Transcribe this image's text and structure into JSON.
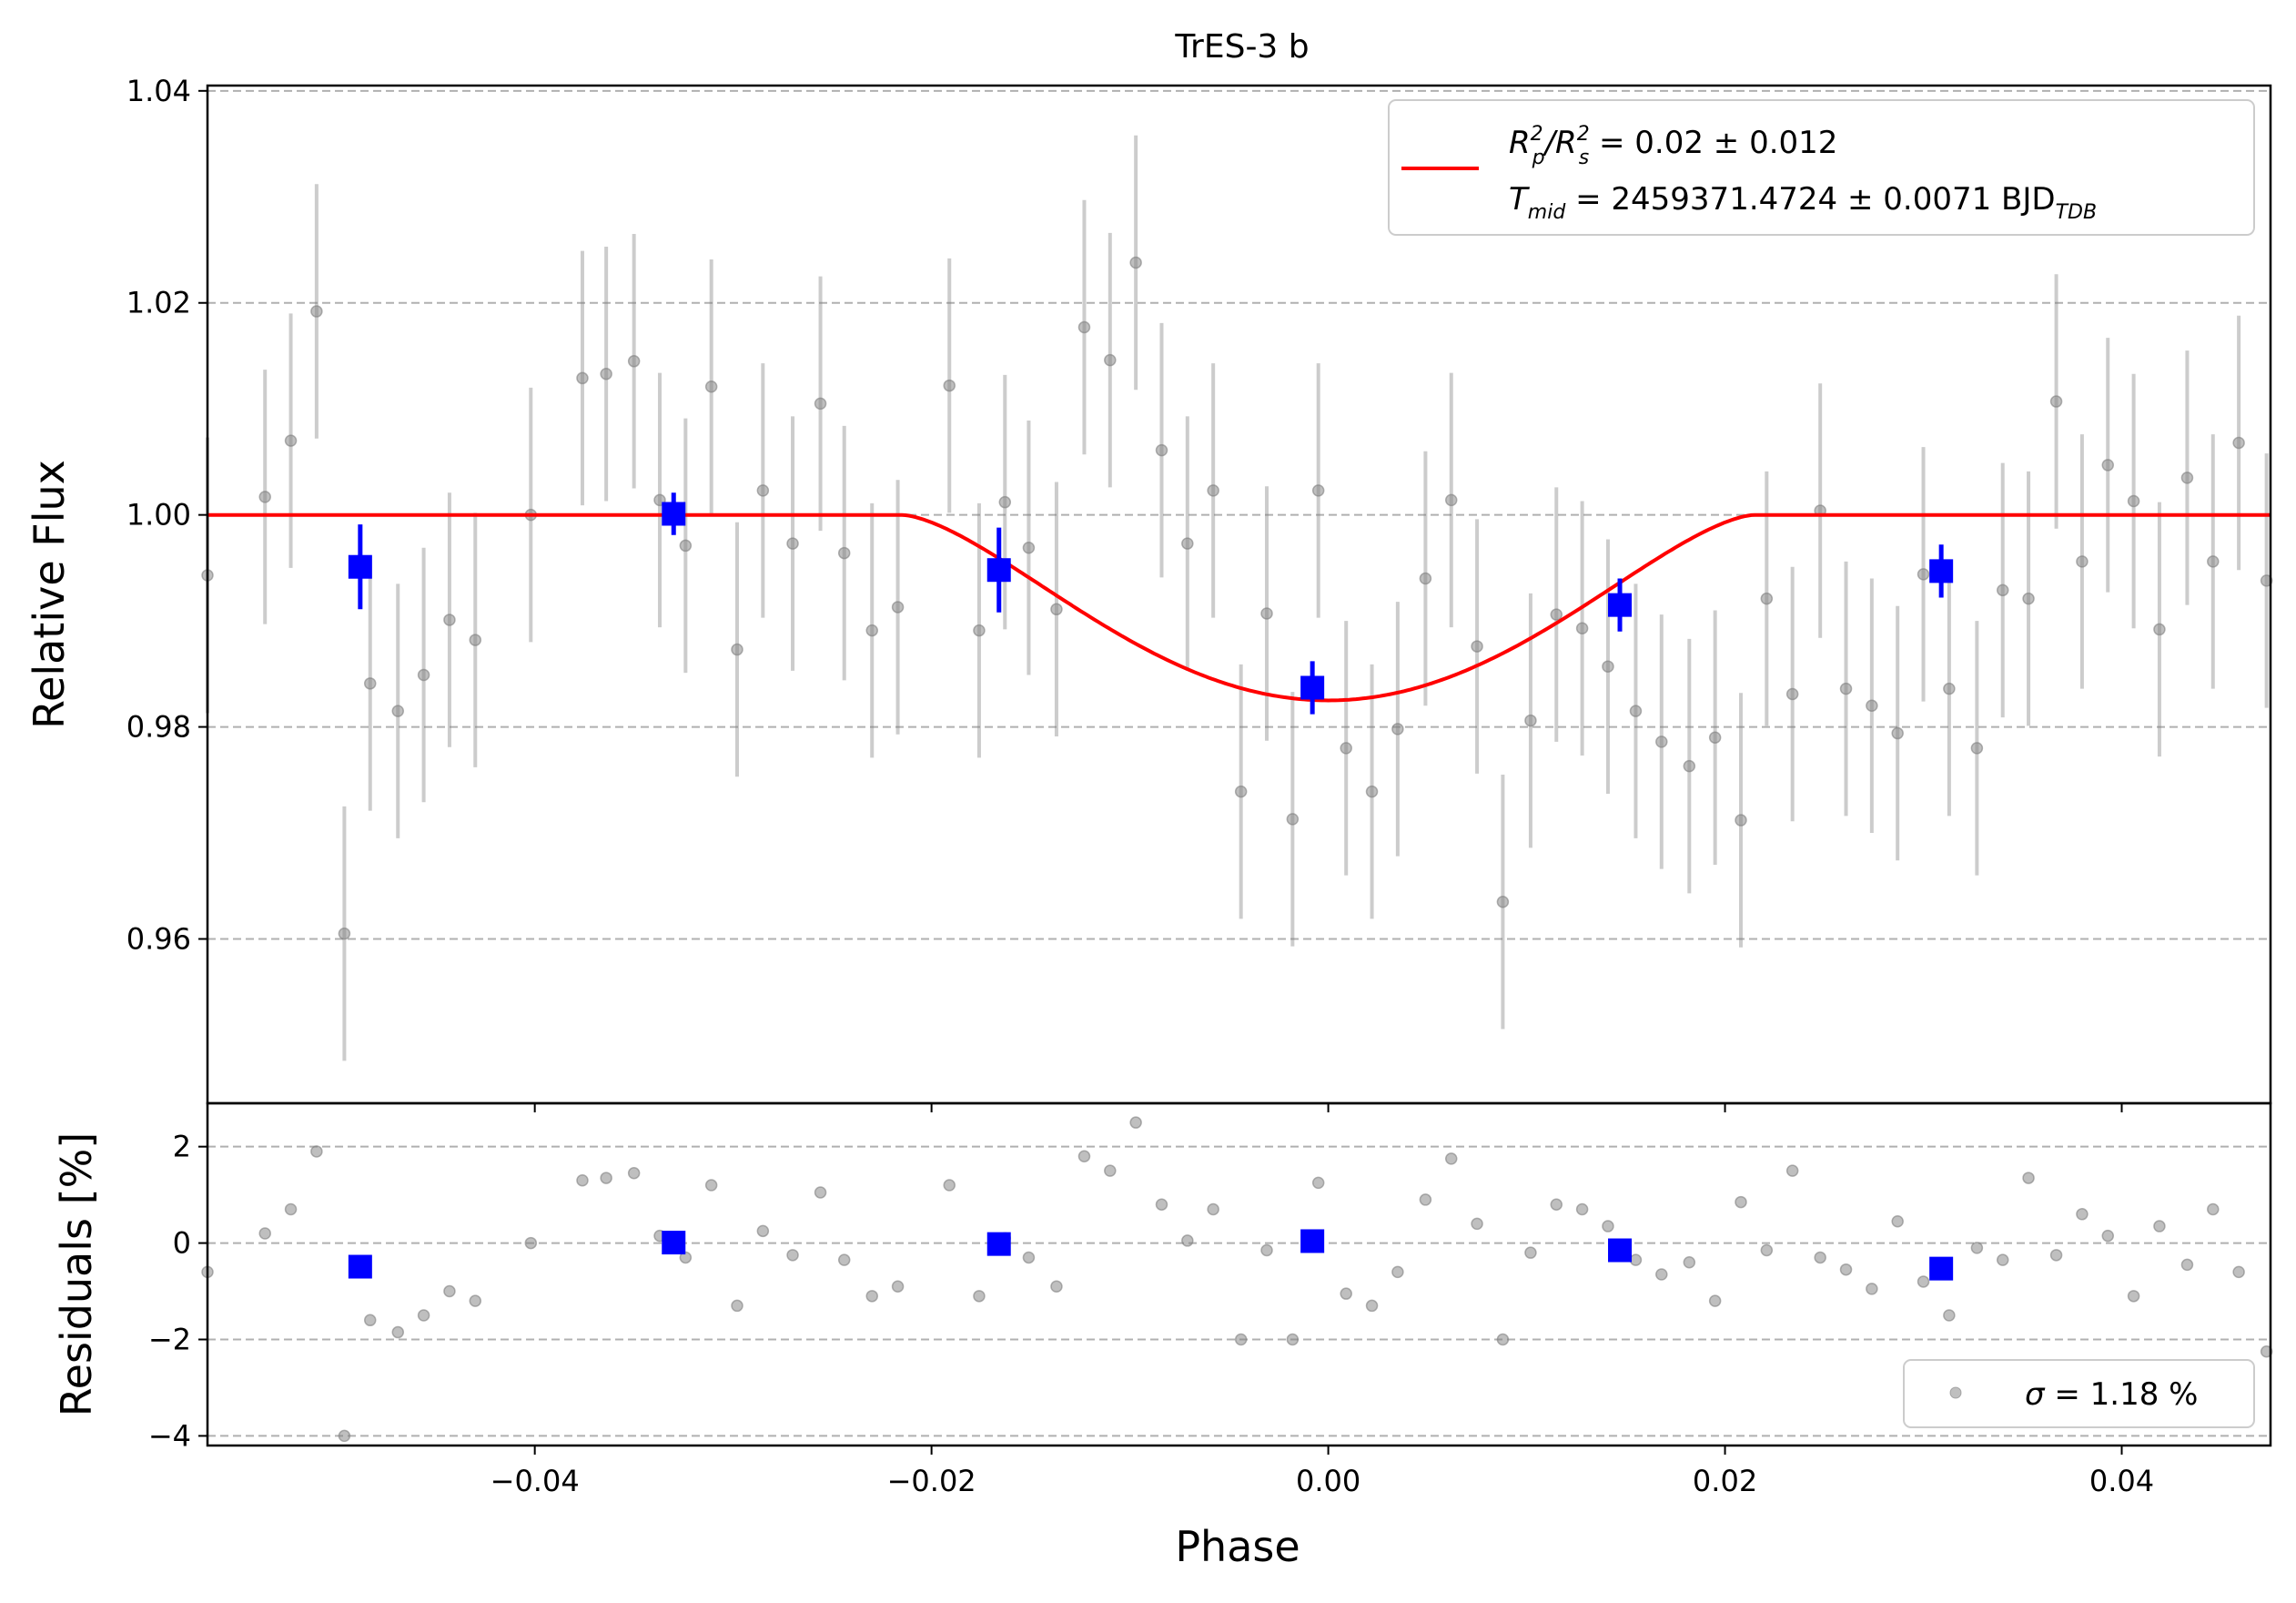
{
  "chart_data": [
    {
      "panel": "main",
      "type": "scatter",
      "title": "TrES-3 b",
      "xlabel": "Phase",
      "ylabel": "Relative Flux",
      "xlim": [
        -0.0565,
        0.0475
      ],
      "ylim": [
        0.9445,
        1.0405
      ],
      "xticks": [
        -0.04,
        -0.02,
        0.0,
        0.02,
        0.04
      ],
      "xtick_labels": [
        "−0.04",
        "−0.02",
        "0.00",
        "0.02",
        "0.04"
      ],
      "yticks": [
        0.96,
        0.98,
        1.0,
        1.02,
        1.04
      ],
      "ytick_labels": [
        "0.96",
        "0.98",
        "1.00",
        "1.02",
        "1.04"
      ],
      "grid": "horizontal dashed",
      "legend_position": "top-right",
      "legend": {
        "model_line_1": {
          "prefix": "R",
          "sub1": "p",
          "sup1": "2",
          "slash": "/R",
          "sub2": "s",
          "sup2": "2",
          "value": " = 0.02 ± 0.012"
        },
        "model_line_2": {
          "prefix": "T",
          "sub": "mid",
          "value": " = 2459371.4724 ± 0.0071 BJD",
          "unit_sub": "TDB"
        }
      },
      "model": {
        "name": "transit model",
        "baseline": 1.0,
        "depth_min": 0.9825,
        "t14_half": 0.0215,
        "flat_bottom_half": 0.0,
        "color": "#ff0000"
      },
      "raw_points": {
        "color": "#808080",
        "points": [
          [
            -0.0565,
            0.9943,
            0.013
          ],
          [
            -0.0536,
            1.0017,
            0.012
          ],
          [
            -0.0523,
            1.007,
            0.012
          ],
          [
            -0.051,
            1.0192,
            0.012
          ],
          [
            -0.0496,
            0.9605,
            0.012
          ],
          [
            -0.0483,
            0.9841,
            0.012
          ],
          [
            -0.0469,
            0.9815,
            0.012
          ],
          [
            -0.0456,
            0.9849,
            0.012
          ],
          [
            -0.0443,
            0.9901,
            0.012
          ],
          [
            -0.043,
            0.9882,
            0.012
          ],
          [
            -0.0402,
            1.0,
            0.012
          ],
          [
            -0.0376,
            1.0129,
            0.012
          ],
          [
            -0.0364,
            1.0133,
            0.012
          ],
          [
            -0.035,
            1.0145,
            0.012
          ],
          [
            -0.0337,
            1.0014,
            0.012
          ],
          [
            -0.0324,
            0.9971,
            0.012
          ],
          [
            -0.0311,
            1.0121,
            0.012
          ],
          [
            -0.0298,
            0.9873,
            0.012
          ],
          [
            -0.0285,
            1.0023,
            0.012
          ],
          [
            -0.027,
            0.9973,
            0.012
          ],
          [
            -0.0256,
            1.0105,
            0.012
          ],
          [
            -0.0244,
            0.9964,
            0.012
          ],
          [
            -0.023,
            0.9891,
            0.012
          ],
          [
            -0.0217,
            0.9913,
            0.012
          ],
          [
            -0.0191,
            1.0122,
            0.012
          ],
          [
            -0.0176,
            0.9891,
            0.012
          ],
          [
            -0.0163,
            1.0012,
            0.012
          ],
          [
            -0.0151,
            0.9969,
            0.012
          ],
          [
            -0.0137,
            0.9911,
            0.012
          ],
          [
            -0.0123,
            1.0177,
            0.012
          ],
          [
            -0.011,
            1.0146,
            0.012
          ],
          [
            -0.0097,
            1.0238,
            0.012
          ],
          [
            -0.0084,
            1.0061,
            0.012
          ],
          [
            -0.0071,
            0.9973,
            0.012
          ],
          [
            -0.0058,
            1.0023,
            0.012
          ],
          [
            -0.0044,
            0.9739,
            0.012
          ],
          [
            -0.0031,
            0.9907,
            0.012
          ],
          [
            -0.0018,
            0.9713,
            0.012
          ],
          [
            -0.0005,
            1.0023,
            0.012
          ],
          [
            0.0009,
            0.978,
            0.012
          ],
          [
            0.0022,
            0.9739,
            0.012
          ],
          [
            0.0035,
            0.9798,
            0.012
          ],
          [
            0.0049,
            0.994,
            0.012
          ],
          [
            0.0062,
            1.0014,
            0.012
          ],
          [
            0.0075,
            0.9876,
            0.012
          ],
          [
            0.0088,
            0.9635,
            0.012
          ],
          [
            0.0102,
            0.9806,
            0.012
          ],
          [
            0.0115,
            0.9906,
            0.012
          ],
          [
            0.0128,
            0.9893,
            0.012
          ],
          [
            0.0141,
            0.9857,
            0.012
          ],
          [
            0.0155,
            0.9815,
            0.012
          ],
          [
            0.0168,
            0.9786,
            0.012
          ],
          [
            0.0182,
            0.9763,
            0.012
          ],
          [
            0.0195,
            0.979,
            0.012
          ],
          [
            0.0208,
            0.9712,
            0.012
          ],
          [
            0.0221,
            0.9921,
            0.012
          ],
          [
            0.0234,
            0.9831,
            0.012
          ],
          [
            0.0248,
            1.0004,
            0.012
          ],
          [
            0.0261,
            0.9836,
            0.012
          ],
          [
            0.0274,
            0.982,
            0.012
          ],
          [
            0.0287,
            0.9794,
            0.012
          ],
          [
            0.03,
            0.9944,
            0.012
          ],
          [
            0.0313,
            0.9836,
            0.012
          ],
          [
            0.0327,
            0.978,
            0.012
          ],
          [
            0.034,
            0.9929,
            0.012
          ],
          [
            0.0353,
            0.9921,
            0.012
          ],
          [
            0.0367,
            1.0107,
            0.012
          ],
          [
            0.038,
            0.9956,
            0.012
          ],
          [
            0.0393,
            1.0047,
            0.012
          ],
          [
            0.0406,
            1.0013,
            0.012
          ],
          [
            0.0419,
            0.9892,
            0.012
          ],
          [
            0.0433,
            1.0035,
            0.012
          ],
          [
            0.0446,
            0.9956,
            0.012
          ],
          [
            0.0459,
            1.0068,
            0.012
          ],
          [
            0.0473,
            0.9938,
            0.012
          ]
        ]
      },
      "binned_points": {
        "color": "#0000ff",
        "points": [
          [
            -0.0488,
            0.9951,
            0.004
          ],
          [
            -0.033,
            1.0001,
            0.002
          ],
          [
            -0.0166,
            0.9948,
            0.004
          ],
          [
            -0.0008,
            0.9837,
            0.0025
          ],
          [
            0.0147,
            0.9915,
            0.0025
          ],
          [
            0.0309,
            0.9947,
            0.0025
          ]
        ]
      }
    },
    {
      "panel": "residuals",
      "type": "scatter",
      "xlabel": "Phase",
      "ylabel": "Residuals [%]",
      "xlim": [
        -0.0565,
        0.0475
      ],
      "ylim": [
        -4.2,
        2.9
      ],
      "yticks": [
        2,
        0,
        -2,
        -4
      ],
      "ytick_labels": [
        "2",
        "0",
        "−2",
        "−4"
      ],
      "grid": "horizontal dashed",
      "legend_position": "bottom-right",
      "legend": {
        "sigma_symbol": "σ",
        "value": " = 1.18 %"
      },
      "raw_points": {
        "color": "#808080",
        "points": [
          [
            -0.0565,
            -0.6
          ],
          [
            -0.0536,
            0.2
          ],
          [
            -0.0523,
            0.7
          ],
          [
            -0.051,
            1.9
          ],
          [
            -0.0496,
            -4.0
          ],
          [
            -0.0483,
            -1.6
          ],
          [
            -0.0469,
            -1.85
          ],
          [
            -0.0456,
            -1.5
          ],
          [
            -0.0443,
            -1.0
          ],
          [
            -0.043,
            -1.2
          ],
          [
            -0.0402,
            0.0
          ],
          [
            -0.0376,
            1.3
          ],
          [
            -0.0364,
            1.35
          ],
          [
            -0.035,
            1.45
          ],
          [
            -0.0337,
            0.15
          ],
          [
            -0.0324,
            -0.3
          ],
          [
            -0.0311,
            1.2
          ],
          [
            -0.0298,
            -1.3
          ],
          [
            -0.0285,
            0.25
          ],
          [
            -0.027,
            -0.25
          ],
          [
            -0.0256,
            1.05
          ],
          [
            -0.0244,
            -0.35
          ],
          [
            -0.023,
            -1.1
          ],
          [
            -0.0217,
            -0.9
          ],
          [
            -0.0191,
            1.2
          ],
          [
            -0.0176,
            -1.1
          ],
          [
            -0.0163,
            0.1
          ],
          [
            -0.0151,
            -0.3
          ],
          [
            -0.0137,
            -0.9
          ],
          [
            -0.0123,
            1.8
          ],
          [
            -0.011,
            1.5
          ],
          [
            -0.0097,
            2.5
          ],
          [
            -0.0084,
            0.8
          ],
          [
            -0.0071,
            0.05
          ],
          [
            -0.0058,
            0.7
          ],
          [
            -0.0044,
            -2.0
          ],
          [
            -0.0031,
            -0.15
          ],
          [
            -0.0018,
            -2.0
          ],
          [
            -0.0005,
            1.25
          ],
          [
            0.0009,
            -1.05
          ],
          [
            0.0022,
            -1.3
          ],
          [
            0.0035,
            -0.6
          ],
          [
            0.0049,
            0.9
          ],
          [
            0.0062,
            1.75
          ],
          [
            0.0075,
            0.4
          ],
          [
            0.0088,
            -2.0
          ],
          [
            0.0102,
            -0.2
          ],
          [
            0.0115,
            0.8
          ],
          [
            0.0128,
            0.7
          ],
          [
            0.0141,
            0.35
          ],
          [
            0.0155,
            -0.35
          ],
          [
            0.0168,
            -0.65
          ],
          [
            0.0182,
            -0.4
          ],
          [
            0.0195,
            -1.2
          ],
          [
            0.0208,
            0.85
          ],
          [
            0.0221,
            -0.15
          ],
          [
            0.0234,
            1.5
          ],
          [
            0.0248,
            -0.3
          ],
          [
            0.0261,
            -0.55
          ],
          [
            0.0274,
            -0.95
          ],
          [
            0.0287,
            0.45
          ],
          [
            0.03,
            -0.8
          ],
          [
            0.0313,
            -1.5
          ],
          [
            0.0327,
            -0.1
          ],
          [
            0.034,
            -0.35
          ],
          [
            0.0353,
            1.35
          ],
          [
            0.0367,
            -0.25
          ],
          [
            0.038,
            0.6
          ],
          [
            0.0393,
            0.15
          ],
          [
            0.0406,
            -1.1
          ],
          [
            0.0419,
            0.35
          ],
          [
            0.0433,
            -0.45
          ],
          [
            0.0446,
            0.7
          ],
          [
            0.0459,
            -0.6
          ],
          [
            0.0473,
            -2.25
          ]
        ]
      },
      "binned_points": {
        "color": "#0000ff",
        "points": [
          [
            -0.0488,
            -0.49
          ],
          [
            -0.033,
            0.01
          ],
          [
            -0.0166,
            -0.02
          ],
          [
            -0.0008,
            0.04
          ],
          [
            0.0147,
            -0.15
          ],
          [
            0.0309,
            -0.53
          ]
        ]
      }
    }
  ]
}
